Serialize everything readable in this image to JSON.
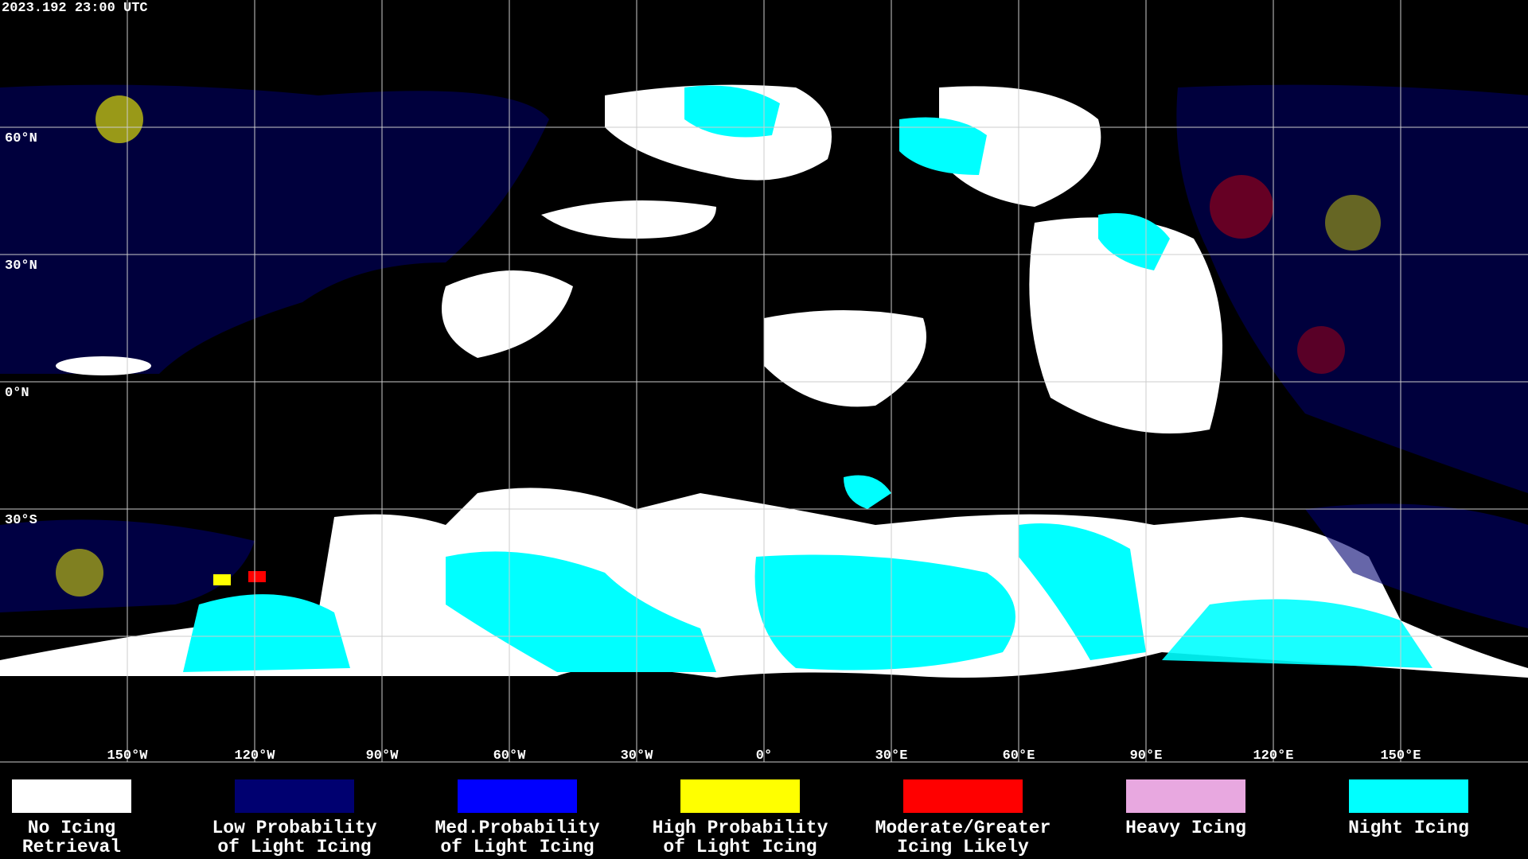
{
  "header": {
    "timestamp": "2023.192 23:00 UTC"
  },
  "map": {
    "lat_labels": [
      "60°N",
      "30°N",
      "0°N",
      "30°S"
    ],
    "lon_labels": [
      "150°W",
      "120°W",
      "90°W",
      "60°W",
      "30°W",
      "0°",
      "30°E",
      "60°E",
      "90°E",
      "120°E",
      "150°E"
    ]
  },
  "legend": {
    "items": [
      {
        "label": [
          "No Icing",
          "Retrieval"
        ],
        "color": "#ffffff"
      },
      {
        "label": [
          "Low Probability",
          "of Light Icing"
        ],
        "color": "#000070"
      },
      {
        "label": [
          "Med.Probability",
          "of Light Icing"
        ],
        "color": "#0000ff"
      },
      {
        "label": [
          "High Probability",
          "of Light Icing"
        ],
        "color": "#ffff00"
      },
      {
        "label": [
          "Moderate/Greater",
          "Icing Likely"
        ],
        "color": "#ff0000"
      },
      {
        "label": [
          "Heavy Icing"
        ],
        "color": "#e8a8e0"
      },
      {
        "label": [
          "Night Icing"
        ],
        "color": "#00ffff"
      }
    ]
  }
}
